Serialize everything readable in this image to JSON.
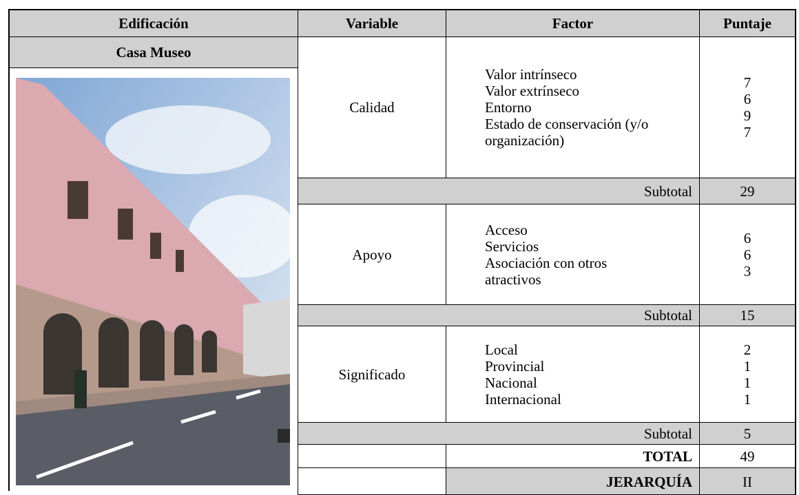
{
  "table": {
    "header": [
      "Edificación",
      "Variable",
      "Factor",
      "Puntaje"
    ],
    "building": "Casa Museo",
    "groups": [
      {
        "variable": "Calidad",
        "factors": [
          "Valor intrínseco",
          "Valor extrínseco",
          "Entorno",
          "Estado de conservación (y/o organización)"
        ],
        "scores": [
          7,
          6,
          9,
          7
        ],
        "subtotal_label": "Subtotal",
        "subtotal": 29
      },
      {
        "variable": "Apoyo",
        "factors": [
          "Acceso",
          "Servicios",
          "Asociación con otros atractivos"
        ],
        "scores": [
          6,
          6,
          3
        ],
        "subtotal_label": "Subtotal",
        "subtotal": 15
      },
      {
        "variable": "Significado",
        "factors": [
          "Local",
          "Provincial",
          "Nacional",
          "Internacional"
        ],
        "scores": [
          2,
          1,
          1,
          1
        ],
        "subtotal_label": "Subtotal",
        "subtotal": 5
      }
    ],
    "total_label": "TOTAL",
    "total": 49,
    "rank_label": "JERARQUÍA",
    "rank": "II"
  }
}
